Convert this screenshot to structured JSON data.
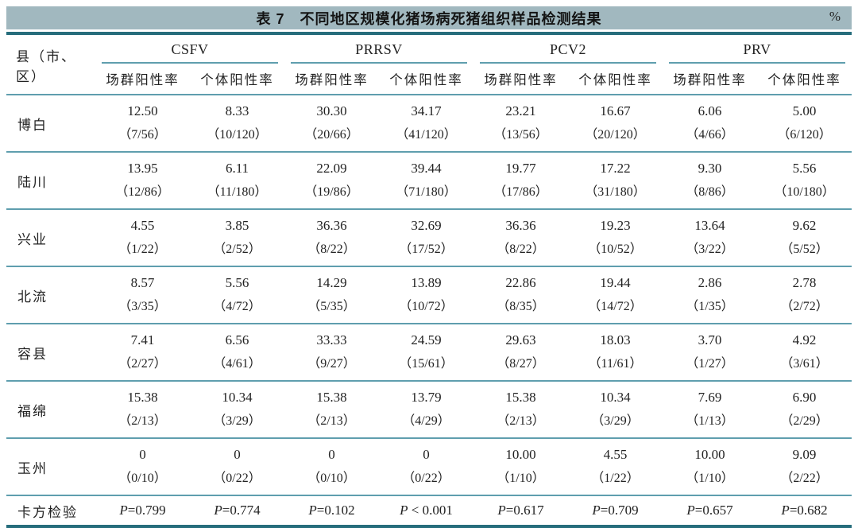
{
  "title": {
    "label": "表 7　不同地区规模化猪场病死猪组织样品检测结果",
    "unit": "%"
  },
  "colors": {
    "title-bg": "#a1b8bf",
    "rule-dark": "#266d7c",
    "rule-thin": "#5f9eae",
    "ink": "#222222"
  },
  "table": {
    "row_header": "县（市、区）",
    "groups": [
      {
        "name": "CSFV",
        "subcols": [
          "场群阳性率",
          "个体阳性率"
        ]
      },
      {
        "name": "PRRSV",
        "subcols": [
          "场群阳性率",
          "个体阳性率"
        ]
      },
      {
        "name": "PCV2",
        "subcols": [
          "场群阳性率",
          "个体阳性率"
        ]
      },
      {
        "name": "PRV",
        "subcols": [
          "场群阳性率",
          "个体阳性率"
        ]
      }
    ],
    "rows": [
      {
        "region": "博白",
        "cells": [
          {
            "pct": "12.50",
            "frac": "（7/56）"
          },
          {
            "pct": "8.33",
            "frac": "（10/120）"
          },
          {
            "pct": "30.30",
            "frac": "（20/66）"
          },
          {
            "pct": "34.17",
            "frac": "（41/120）"
          },
          {
            "pct": "23.21",
            "frac": "（13/56）"
          },
          {
            "pct": "16.67",
            "frac": "（20/120）"
          },
          {
            "pct": "6.06",
            "frac": "（4/66）"
          },
          {
            "pct": "5.00",
            "frac": "（6/120）"
          }
        ]
      },
      {
        "region": "陆川",
        "cells": [
          {
            "pct": "13.95",
            "frac": "（12/86）"
          },
          {
            "pct": "6.11",
            "frac": "（11/180）"
          },
          {
            "pct": "22.09",
            "frac": "（19/86）"
          },
          {
            "pct": "39.44",
            "frac": "（71/180）"
          },
          {
            "pct": "19.77",
            "frac": "（17/86）"
          },
          {
            "pct": "17.22",
            "frac": "（31/180）"
          },
          {
            "pct": "9.30",
            "frac": "（8/86）"
          },
          {
            "pct": "5.56",
            "frac": "（10/180）"
          }
        ]
      },
      {
        "region": "兴业",
        "cells": [
          {
            "pct": "4.55",
            "frac": "（1/22）"
          },
          {
            "pct": "3.85",
            "frac": "（2/52）"
          },
          {
            "pct": "36.36",
            "frac": "（8/22）"
          },
          {
            "pct": "32.69",
            "frac": "（17/52）"
          },
          {
            "pct": "36.36",
            "frac": "（8/22）"
          },
          {
            "pct": "19.23",
            "frac": "（10/52）"
          },
          {
            "pct": "13.64",
            "frac": "（3/22）"
          },
          {
            "pct": "9.62",
            "frac": "（5/52）"
          }
        ]
      },
      {
        "region": "北流",
        "cells": [
          {
            "pct": "8.57",
            "frac": "（3/35）"
          },
          {
            "pct": "5.56",
            "frac": "（4/72）"
          },
          {
            "pct": "14.29",
            "frac": "（5/35）"
          },
          {
            "pct": "13.89",
            "frac": "（10/72）"
          },
          {
            "pct": "22.86",
            "frac": "（8/35）"
          },
          {
            "pct": "19.44",
            "frac": "（14/72）"
          },
          {
            "pct": "2.86",
            "frac": "（1/35）"
          },
          {
            "pct": "2.78",
            "frac": "（2/72）"
          }
        ]
      },
      {
        "region": "容县",
        "cells": [
          {
            "pct": "7.41",
            "frac": "（2/27）"
          },
          {
            "pct": "6.56",
            "frac": "（4/61）"
          },
          {
            "pct": "33.33",
            "frac": "（9/27）"
          },
          {
            "pct": "24.59",
            "frac": "（15/61）"
          },
          {
            "pct": "29.63",
            "frac": "（8/27）"
          },
          {
            "pct": "18.03",
            "frac": "（11/61）"
          },
          {
            "pct": "3.70",
            "frac": "（1/27）"
          },
          {
            "pct": "4.92",
            "frac": "（3/61）"
          }
        ]
      },
      {
        "region": "福绵",
        "cells": [
          {
            "pct": "15.38",
            "frac": "（2/13）"
          },
          {
            "pct": "10.34",
            "frac": "（3/29）"
          },
          {
            "pct": "15.38",
            "frac": "（2/13）"
          },
          {
            "pct": "13.79",
            "frac": "（4/29）"
          },
          {
            "pct": "15.38",
            "frac": "（2/13）"
          },
          {
            "pct": "10.34",
            "frac": "（3/29）"
          },
          {
            "pct": "7.69",
            "frac": "（1/13）"
          },
          {
            "pct": "6.90",
            "frac": "（2/29）"
          }
        ]
      },
      {
        "region": "玉州",
        "cells": [
          {
            "pct": "0",
            "frac": "（0/10）"
          },
          {
            "pct": "0",
            "frac": "（0/22）"
          },
          {
            "pct": "0",
            "frac": "（0/10）"
          },
          {
            "pct": "0",
            "frac": "（0/22）"
          },
          {
            "pct": "10.00",
            "frac": "（1/10）"
          },
          {
            "pct": "4.55",
            "frac": "（1/22）"
          },
          {
            "pct": "10.00",
            "frac": "（1/10）"
          },
          {
            "pct": "9.09",
            "frac": "（2/22）"
          }
        ]
      }
    ],
    "footer": {
      "label": "卡方检验",
      "values": [
        {
          "p": "P",
          "rest": "=0.799"
        },
        {
          "p": "P",
          "rest": "=0.774"
        },
        {
          "p": "P",
          "rest": "=0.102"
        },
        {
          "p": "P",
          "rest": " < 0.001"
        },
        {
          "p": "P",
          "rest": "=0.617"
        },
        {
          "p": "P",
          "rest": "=0.709"
        },
        {
          "p": "P",
          "rest": "=0.657"
        },
        {
          "p": "P",
          "rest": "=0.682"
        }
      ]
    }
  }
}
